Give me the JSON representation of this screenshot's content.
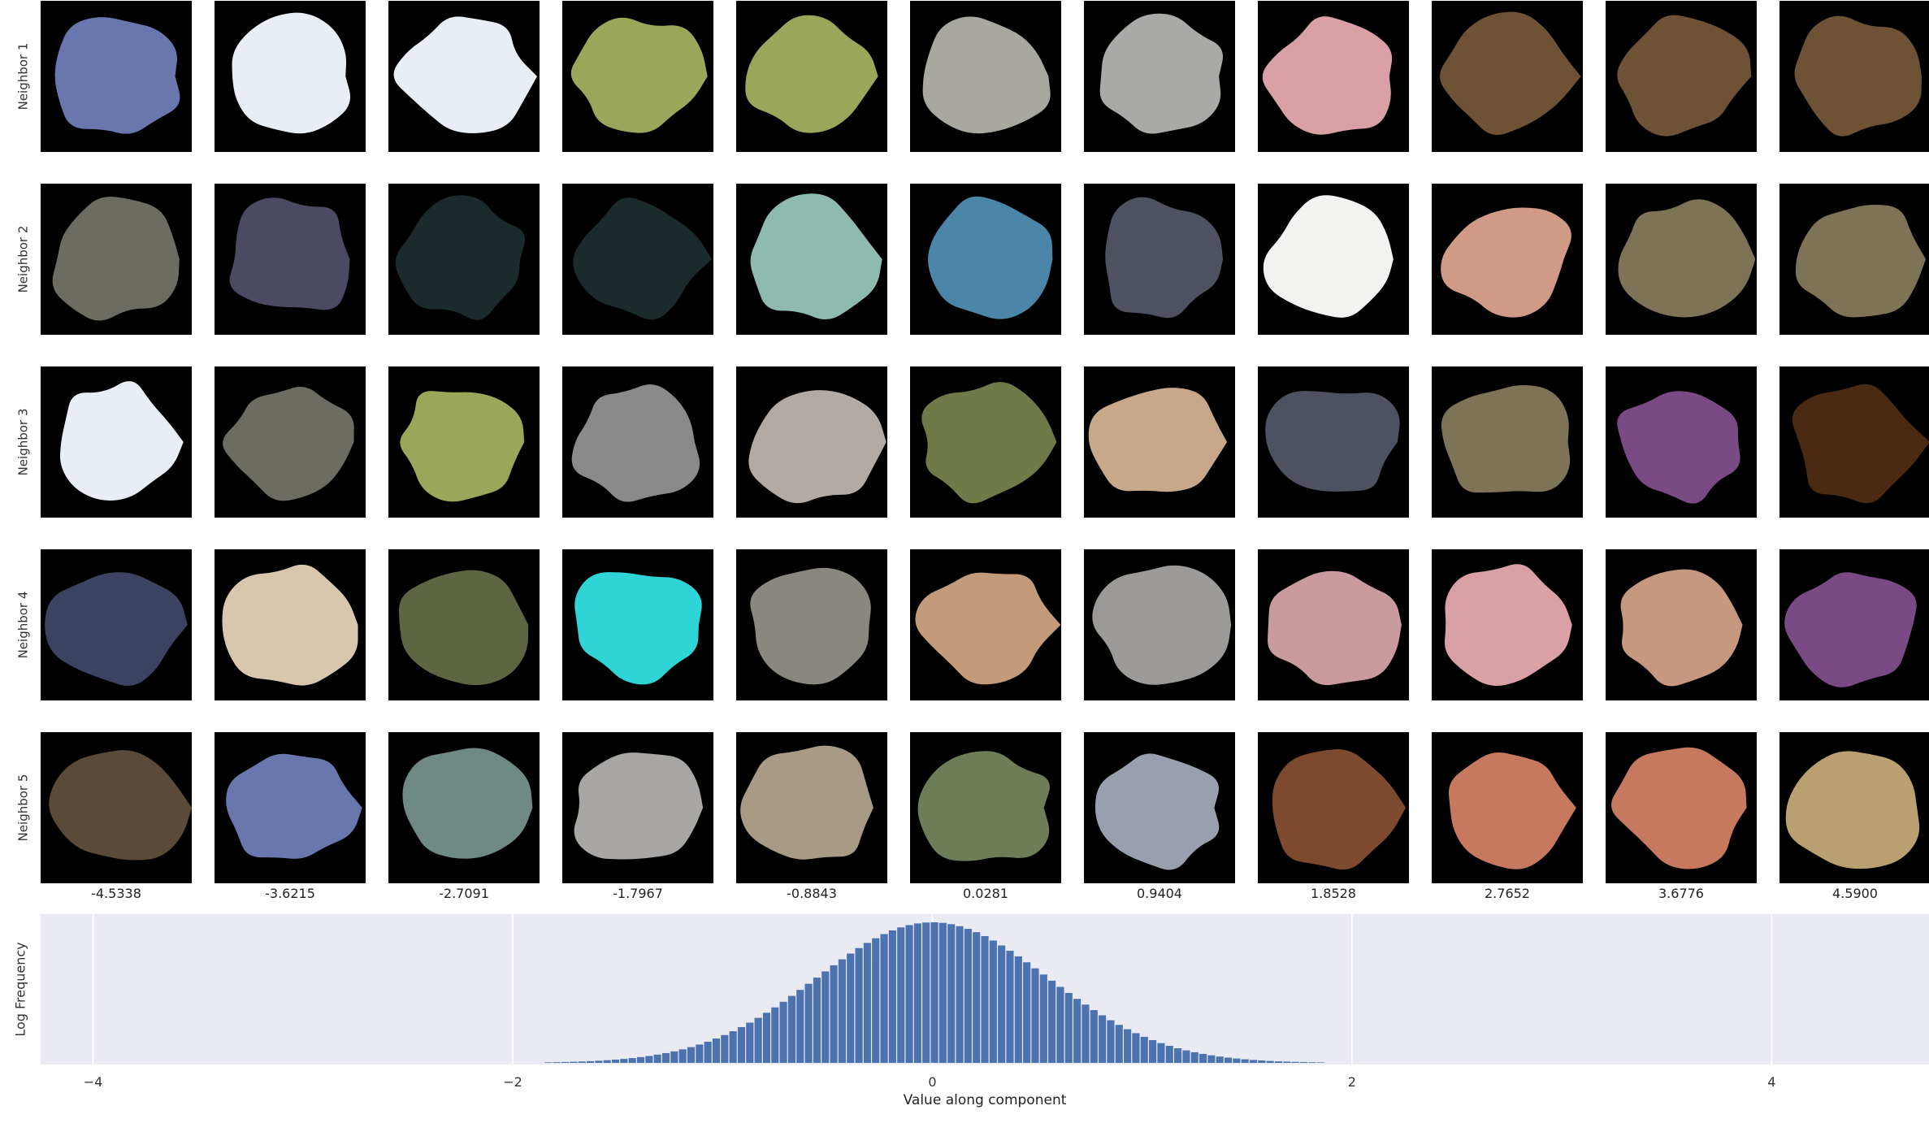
{
  "row_labels": [
    "Neighbor 1",
    "Neighbor 2",
    "Neighbor 3",
    "Neighbor 4",
    "Neighbor 5"
  ],
  "column_values": [
    "-4.5338",
    "-3.6215",
    "-2.7091",
    "-1.7967",
    "-0.8843",
    "0.0281",
    "0.9404",
    "1.8528",
    "2.7652",
    "3.6776",
    "4.5900"
  ],
  "tiles": [
    [
      "#6a77ae",
      "#e8eef4",
      "#e8eef4",
      "#9aa65a",
      "#9aa65a",
      "#a8a7a0",
      "#a9a9a6",
      "#d9a1a6",
      "#6e5235",
      "#6e5235",
      "#6e5235"
    ],
    [
      "#6d6c63",
      "#4a4a62",
      "#1b2a2a",
      "#1b2a2a",
      "#8fbab0",
      "#4b85a8",
      "#4e5260",
      "#f2f2f0",
      "#d09a86",
      "#7d7458",
      "#7d7458"
    ],
    [
      "#e8eef4",
      "#6d6c63",
      "#9aa65a",
      "#8a8a8a",
      "#b1aaa5",
      "#6e7a48",
      "#c8a88a",
      "#4e5260",
      "#7d7458",
      "#7a4a85",
      "#4a2a12"
    ],
    [
      "#3d4260",
      "#d9c6ae",
      "#5d6642",
      "#2fd4d6",
      "#8a8780",
      "#c49b7a",
      "#9c9a97",
      "#c99aa0",
      "#d9a1a6",
      "#c79880",
      "#7a4a85"
    ],
    [
      "#5a4a3a",
      "#6a77ae",
      "#6f8a84",
      "#a8a6a2",
      "#a89a85",
      "#6e7c58",
      "#9a9fad",
      "#7d4a30",
      "#c77960",
      "#c77960",
      "#b8a070"
    ]
  ],
  "hist_ylabel": "Log Frequency",
  "hist_xlabel": "Value along component",
  "hist_ticks": [
    "−4",
    "−2",
    "0",
    "2",
    "4"
  ],
  "colors": {
    "bar": "#4c72b0",
    "panel": "#eaeaf2",
    "grid": "#ffffff"
  },
  "chart_data": {
    "type": "bar",
    "title": "",
    "xlabel": "Value along component",
    "ylabel": "Log Frequency",
    "xlim": [
      -4.25,
      4.75
    ],
    "xticks": [
      -4,
      -2,
      0,
      2,
      4
    ],
    "grid": true,
    "bin_range": [
      -2.25,
      2.45
    ],
    "bin_width": 0.04,
    "shape": "gaussian",
    "mean": 0.0,
    "std": 0.55,
    "peak_relative_height": 1.0
  }
}
